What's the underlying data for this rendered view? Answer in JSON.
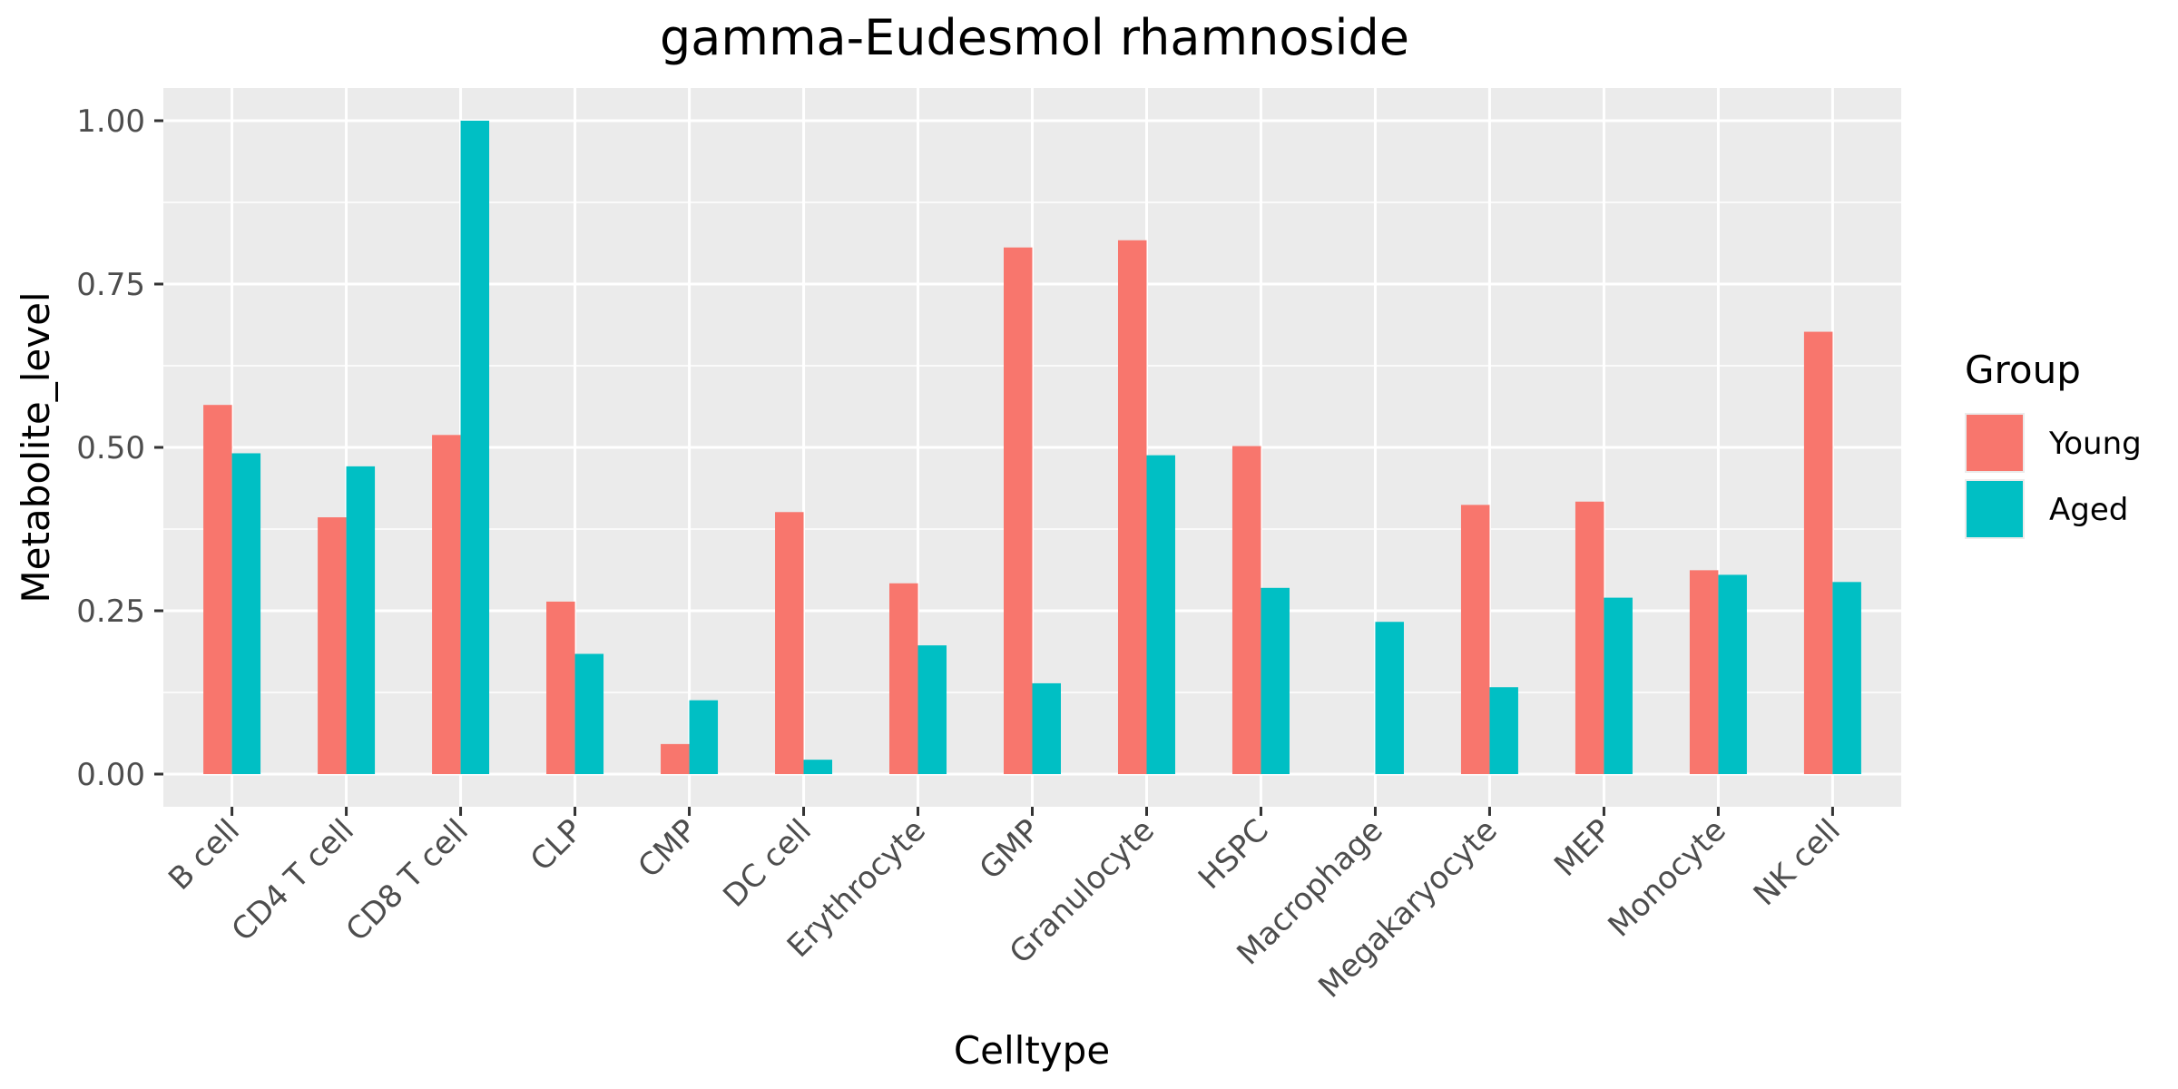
{
  "chart_data": {
    "type": "bar",
    "title": "gamma-Eudesmol rhamnoside",
    "xlabel": "Celltype",
    "ylabel": "Metabolite_level",
    "ylim": [
      -0.05,
      1.05
    ],
    "yticks": [
      0.0,
      0.25,
      0.5,
      0.75,
      1.0
    ],
    "ytick_labels": [
      "0.00",
      "0.25",
      "0.50",
      "0.75",
      "1.00"
    ],
    "grid": true,
    "legend": {
      "title": "Group",
      "position": "right"
    },
    "categories": [
      "B cell",
      "CD4 T cell",
      "CD8 T cell",
      "CLP",
      "CMP",
      "DC cell",
      "Erythrocyte",
      "GMP",
      "Granulocyte",
      "HSPC",
      "Macrophage",
      "Megakaryocyte",
      "MEP",
      "Monocyte",
      "NK cell"
    ],
    "series": [
      {
        "name": "Young",
        "color": "#F8766D",
        "values": [
          0.565,
          0.393,
          0.519,
          0.264,
          0.046,
          0.401,
          0.292,
          0.806,
          0.817,
          0.502,
          0.0,
          0.412,
          0.417,
          0.312,
          0.677
        ]
      },
      {
        "name": "Aged",
        "color": "#00BFC4",
        "values": [
          0.491,
          0.471,
          1.0,
          0.184,
          0.113,
          0.022,
          0.197,
          0.139,
          0.488,
          0.285,
          0.233,
          0.133,
          0.27,
          0.305,
          0.294
        ]
      }
    ]
  }
}
